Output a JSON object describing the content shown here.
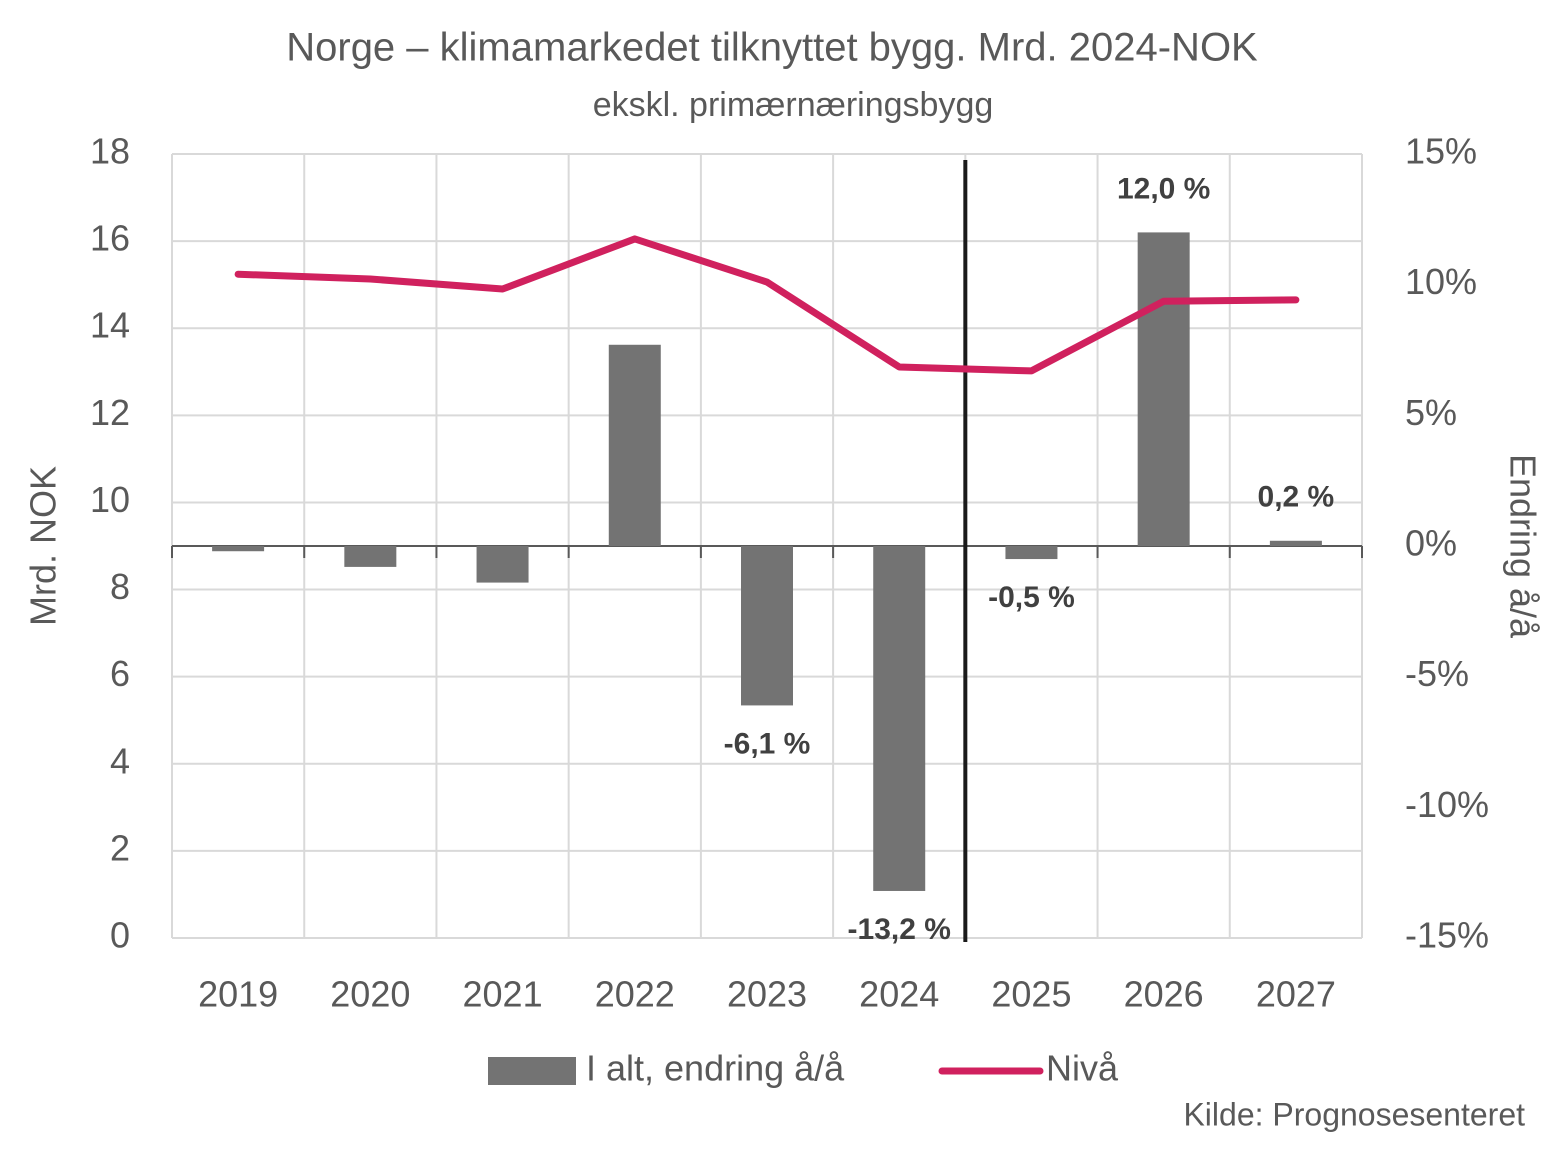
{
  "chart_data": {
    "type": "bar-line",
    "title": "Norge – klimamarkedet tilknyttet bygg. Mrd. 2024-NOK",
    "subtitle": "ekskl. primærnæringsbygg",
    "y_label": "Mrd. NOK",
    "y2_label": "Endring å/å",
    "source": "Kilde: Prognosesenteret",
    "categories": [
      "2019",
      "2020",
      "2021",
      "2022",
      "2023",
      "2024",
      "2025",
      "2026",
      "2027"
    ],
    "series": [
      {
        "name": "I alt, endring å/å",
        "type": "bar",
        "axis": "y2",
        "color": "#737373",
        "values": [
          -0.2,
          -0.8,
          -1.4,
          7.7,
          -6.1,
          -13.2,
          -0.5,
          12.0,
          0.2
        ],
        "value_labels": [
          null,
          null,
          null,
          null,
          "-6,1 %",
          "-13,2 %",
          "-0,5 %",
          "12,0 %",
          "0,2 %"
        ]
      },
      {
        "name": "Nivå",
        "type": "line",
        "axis": "y",
        "color": "#d0215e",
        "values": [
          15.24,
          15.13,
          14.9,
          16.05,
          15.06,
          13.11,
          13.02,
          14.62,
          14.65
        ]
      }
    ],
    "ylim": [
      0,
      18
    ],
    "yticks": [
      0,
      2,
      4,
      6,
      8,
      10,
      12,
      14,
      16,
      18
    ],
    "y2lim": [
      -15,
      15
    ],
    "y2ticks": [
      {
        "value": -15,
        "label": "-15%"
      },
      {
        "value": -10,
        "label": "-10%"
      },
      {
        "value": -5,
        "label": "-5%"
      },
      {
        "value": 0,
        "label": "0%"
      },
      {
        "value": 5,
        "label": "5%"
      },
      {
        "value": 10,
        "label": "10%"
      },
      {
        "value": 15,
        "label": "15%"
      }
    ],
    "grid": true,
    "legend": "bottom"
  }
}
